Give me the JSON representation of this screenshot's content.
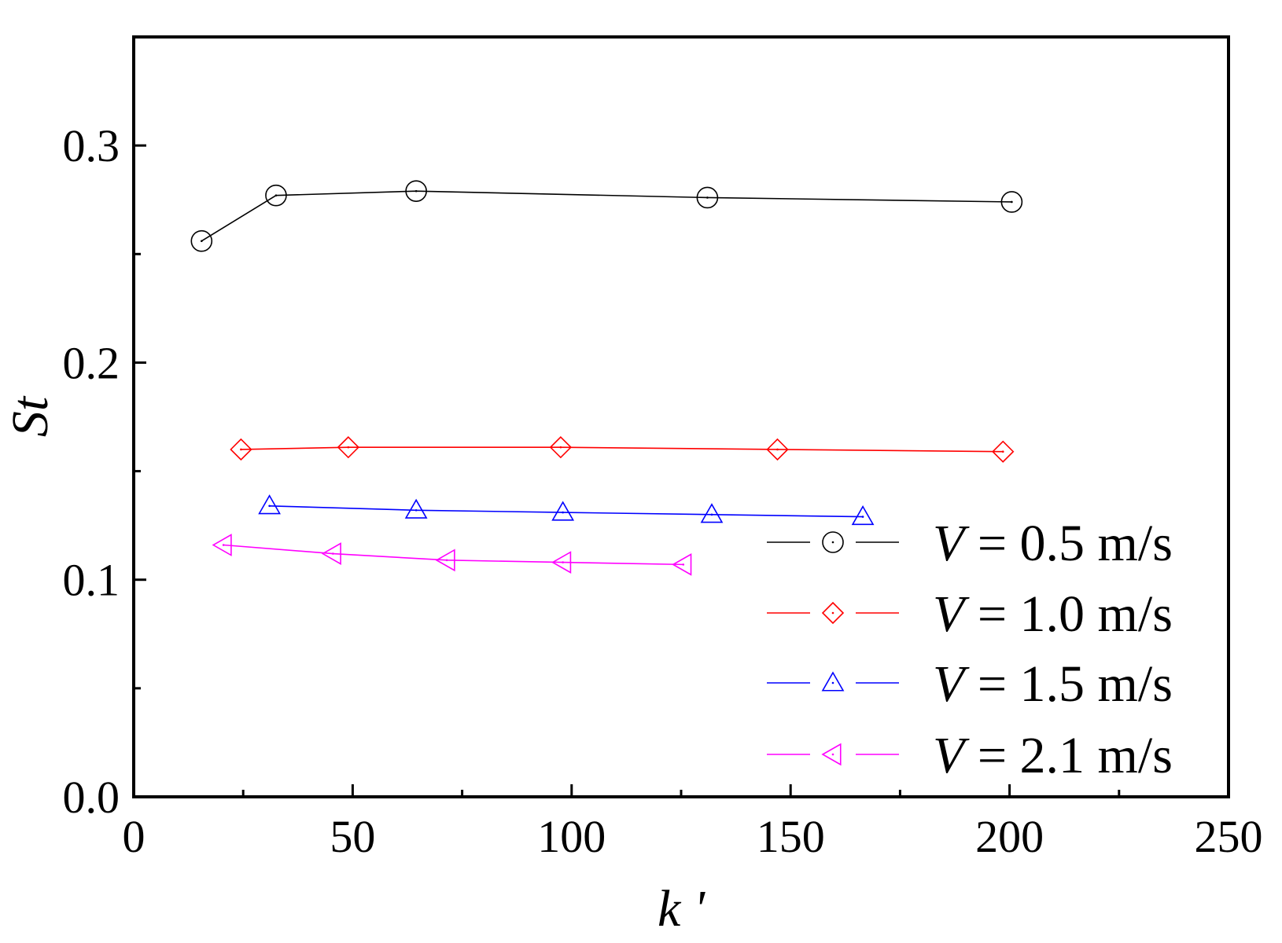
{
  "chart_data": {
    "type": "line",
    "title": "",
    "xlabel": "k '",
    "ylabel": "St",
    "xlim": [
      0,
      250
    ],
    "ylim": [
      0,
      0.35
    ],
    "x_ticks": [
      "0",
      "50",
      "100",
      "150",
      "200",
      "250"
    ],
    "y_ticks": [
      "0.0",
      "0.1",
      "0.2",
      "0.3"
    ],
    "grid": false,
    "legend_position": "bottom-right",
    "series": [
      {
        "name": "V = 0.5 m/s",
        "legend_var": "V",
        "legend_rest": " = 0.5 m/s",
        "color": "#000000",
        "marker": "circle",
        "x": [
          15.5,
          32.5,
          64.5,
          131,
          200.5
        ],
        "y": [
          0.256,
          0.277,
          0.279,
          0.276,
          0.274
        ]
      },
      {
        "name": "V = 1.0 m/s",
        "legend_var": "V",
        "legend_rest": " = 1.0 m/s",
        "color": "#ff0000",
        "marker": "diamond",
        "x": [
          24.5,
          49,
          97.5,
          147,
          198.5
        ],
        "y": [
          0.16,
          0.161,
          0.161,
          0.16,
          0.159
        ]
      },
      {
        "name": "V = 1.5 m/s",
        "legend_var": "V",
        "legend_rest": " = 1.5 m/s",
        "color": "#0000ff",
        "marker": "triangle-up",
        "x": [
          31,
          64.5,
          98,
          132,
          166.5
        ],
        "y": [
          0.134,
          0.132,
          0.131,
          0.13,
          0.129
        ]
      },
      {
        "name": "V = 2.1 m/s",
        "legend_var": "V",
        "legend_rest": " = 2.1 m/s",
        "color": "#ff00ff",
        "marker": "triangle-left",
        "x": [
          20.5,
          45.5,
          71.5,
          98,
          125.5
        ],
        "y": [
          0.116,
          0.112,
          0.109,
          0.108,
          0.107
        ]
      }
    ]
  }
}
